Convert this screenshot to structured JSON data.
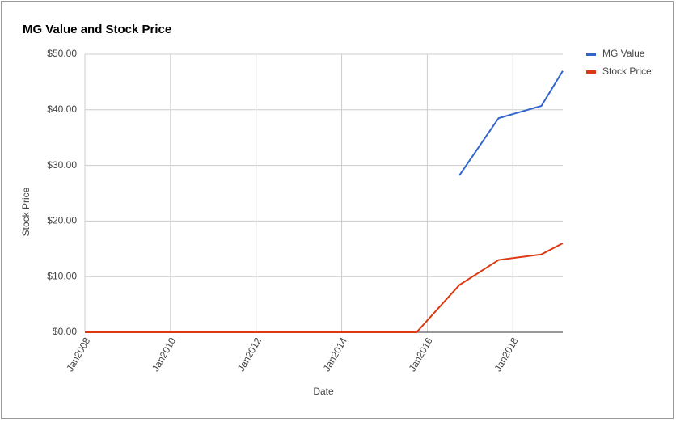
{
  "chart_data": {
    "type": "line",
    "title": "MG Value and Stock Price",
    "x_label": "Date",
    "y_label": "Stock Price",
    "x": [
      "2008-01",
      "2015-10",
      "2016-10",
      "2017-09",
      "2018-09",
      "2019-03"
    ],
    "series": [
      {
        "name": "MG Value",
        "color": "#3366cc",
        "values": [
          null,
          null,
          28.2,
          38.5,
          40.7,
          47
        ]
      },
      {
        "name": "Stock Price",
        "color": "#dc3912",
        "values": [
          0,
          0,
          8.5,
          13,
          14,
          16
        ]
      }
    ],
    "xlim": [
      "2008-01",
      "2019-03"
    ],
    "xticks": [
      {
        "value": "2008-01",
        "label": "Jan2008"
      },
      {
        "value": "2010-01",
        "label": "Jan2010"
      },
      {
        "value": "2012-01",
        "label": "Jan2012"
      },
      {
        "value": "2014-01",
        "label": "Jan2014"
      },
      {
        "value": "2016-01",
        "label": "Jan2016"
      },
      {
        "value": "2018-01",
        "label": "Jan2018"
      }
    ],
    "ylim": [
      0,
      50
    ],
    "yticks": [
      {
        "value": 0,
        "label": "$0.00"
      },
      {
        "value": 10,
        "label": "$10.00"
      },
      {
        "value": 20,
        "label": "$20.00"
      },
      {
        "value": 30,
        "label": "$30.00"
      },
      {
        "value": 40,
        "label": "$40.00"
      },
      {
        "value": 50,
        "label": "$50.00"
      }
    ],
    "grid": true,
    "legend": "right"
  }
}
